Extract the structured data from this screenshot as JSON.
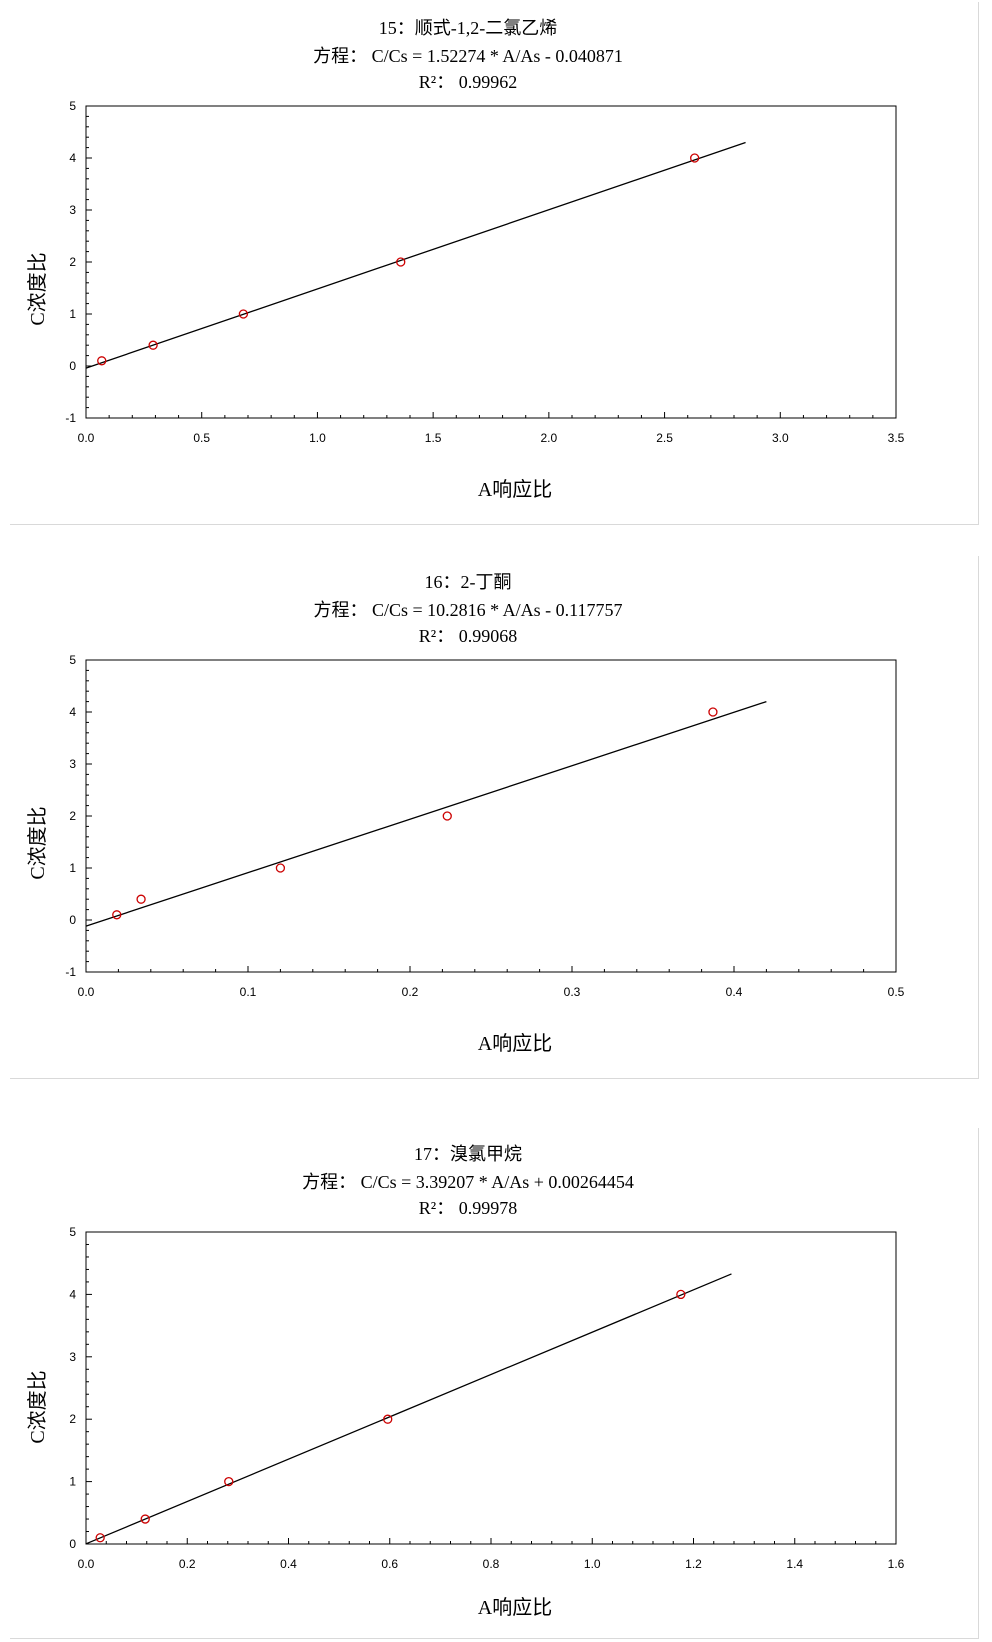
{
  "chart_data": [
    {
      "type": "scatter",
      "title": "15：顺式-1,2-二氯乙烯",
      "equation": "方程：  C/Cs =  1.52274 * A/As - 0.040871",
      "r2": "R²：  0.99962",
      "xlabel": "A响应比",
      "ylabel": "C浓度比",
      "xlim": [
        0,
        3.5
      ],
      "ylim": [
        -1,
        5
      ],
      "xticks": [
        "0.0",
        "0.5",
        "1.0",
        "1.5",
        "2.0",
        "2.5",
        "3.0",
        "3.5"
      ],
      "yticks": [
        "-1",
        "0",
        "1",
        "2",
        "3",
        "4",
        "5"
      ],
      "points": [
        {
          "x": 0.068,
          "y": 0.1
        },
        {
          "x": 0.29,
          "y": 0.4
        },
        {
          "x": 0.68,
          "y": 1.0
        },
        {
          "x": 1.36,
          "y": 2.0
        },
        {
          "x": 2.63,
          "y": 4.0
        }
      ],
      "fit": {
        "slope": 1.52274,
        "intercept": -0.040871,
        "x_range": [
          0,
          2.85
        ]
      },
      "colors": {
        "point": "#cc0000",
        "line": "#000000"
      },
      "grid": false
    },
    {
      "type": "scatter",
      "title": "16：2-丁酮",
      "equation": "方程：  C/Cs =  10.2816 * A/As - 0.117757",
      "r2": "R²：  0.99068",
      "xlabel": "A响应比",
      "ylabel": "C浓度比",
      "xlim": [
        0,
        0.5
      ],
      "ylim": [
        -1,
        5
      ],
      "xticks": [
        "0.0",
        "0.1",
        "0.2",
        "0.3",
        "0.4",
        "0.5"
      ],
      "yticks": [
        "-1",
        "0",
        "1",
        "2",
        "3",
        "4",
        "5"
      ],
      "points": [
        {
          "x": 0.019,
          "y": 0.1
        },
        {
          "x": 0.034,
          "y": 0.4
        },
        {
          "x": 0.12,
          "y": 1.0
        },
        {
          "x": 0.223,
          "y": 2.0
        },
        {
          "x": 0.387,
          "y": 4.0
        }
      ],
      "fit": {
        "slope": 10.2816,
        "intercept": -0.117757,
        "x_range": [
          0,
          0.42
        ]
      },
      "colors": {
        "point": "#cc0000",
        "line": "#000000"
      },
      "grid": false
    },
    {
      "type": "scatter",
      "title": "17：溴氯甲烷",
      "equation": "方程：  C/Cs =  3.39207 * A/As + 0.00264454",
      "r2": "R²：  0.99978",
      "xlabel": "A响应比",
      "ylabel": "C浓度比",
      "xlim": [
        0,
        1.6
      ],
      "ylim": [
        0,
        5
      ],
      "xticks": [
        "0.0",
        "0.2",
        "0.4",
        "0.6",
        "0.8",
        "1.0",
        "1.2",
        "1.4",
        "1.6"
      ],
      "yticks": [
        "0",
        "1",
        "2",
        "3",
        "4",
        "5"
      ],
      "points": [
        {
          "x": 0.028,
          "y": 0.1
        },
        {
          "x": 0.117,
          "y": 0.4
        },
        {
          "x": 0.282,
          "y": 1.0
        },
        {
          "x": 0.596,
          "y": 2.0
        },
        {
          "x": 1.175,
          "y": 4.0
        }
      ],
      "fit": {
        "slope": 3.39207,
        "intercept": 0.00264454,
        "x_range": [
          0,
          1.275
        ]
      },
      "colors": {
        "point": "#cc0000",
        "line": "#000000"
      },
      "grid": false
    }
  ]
}
